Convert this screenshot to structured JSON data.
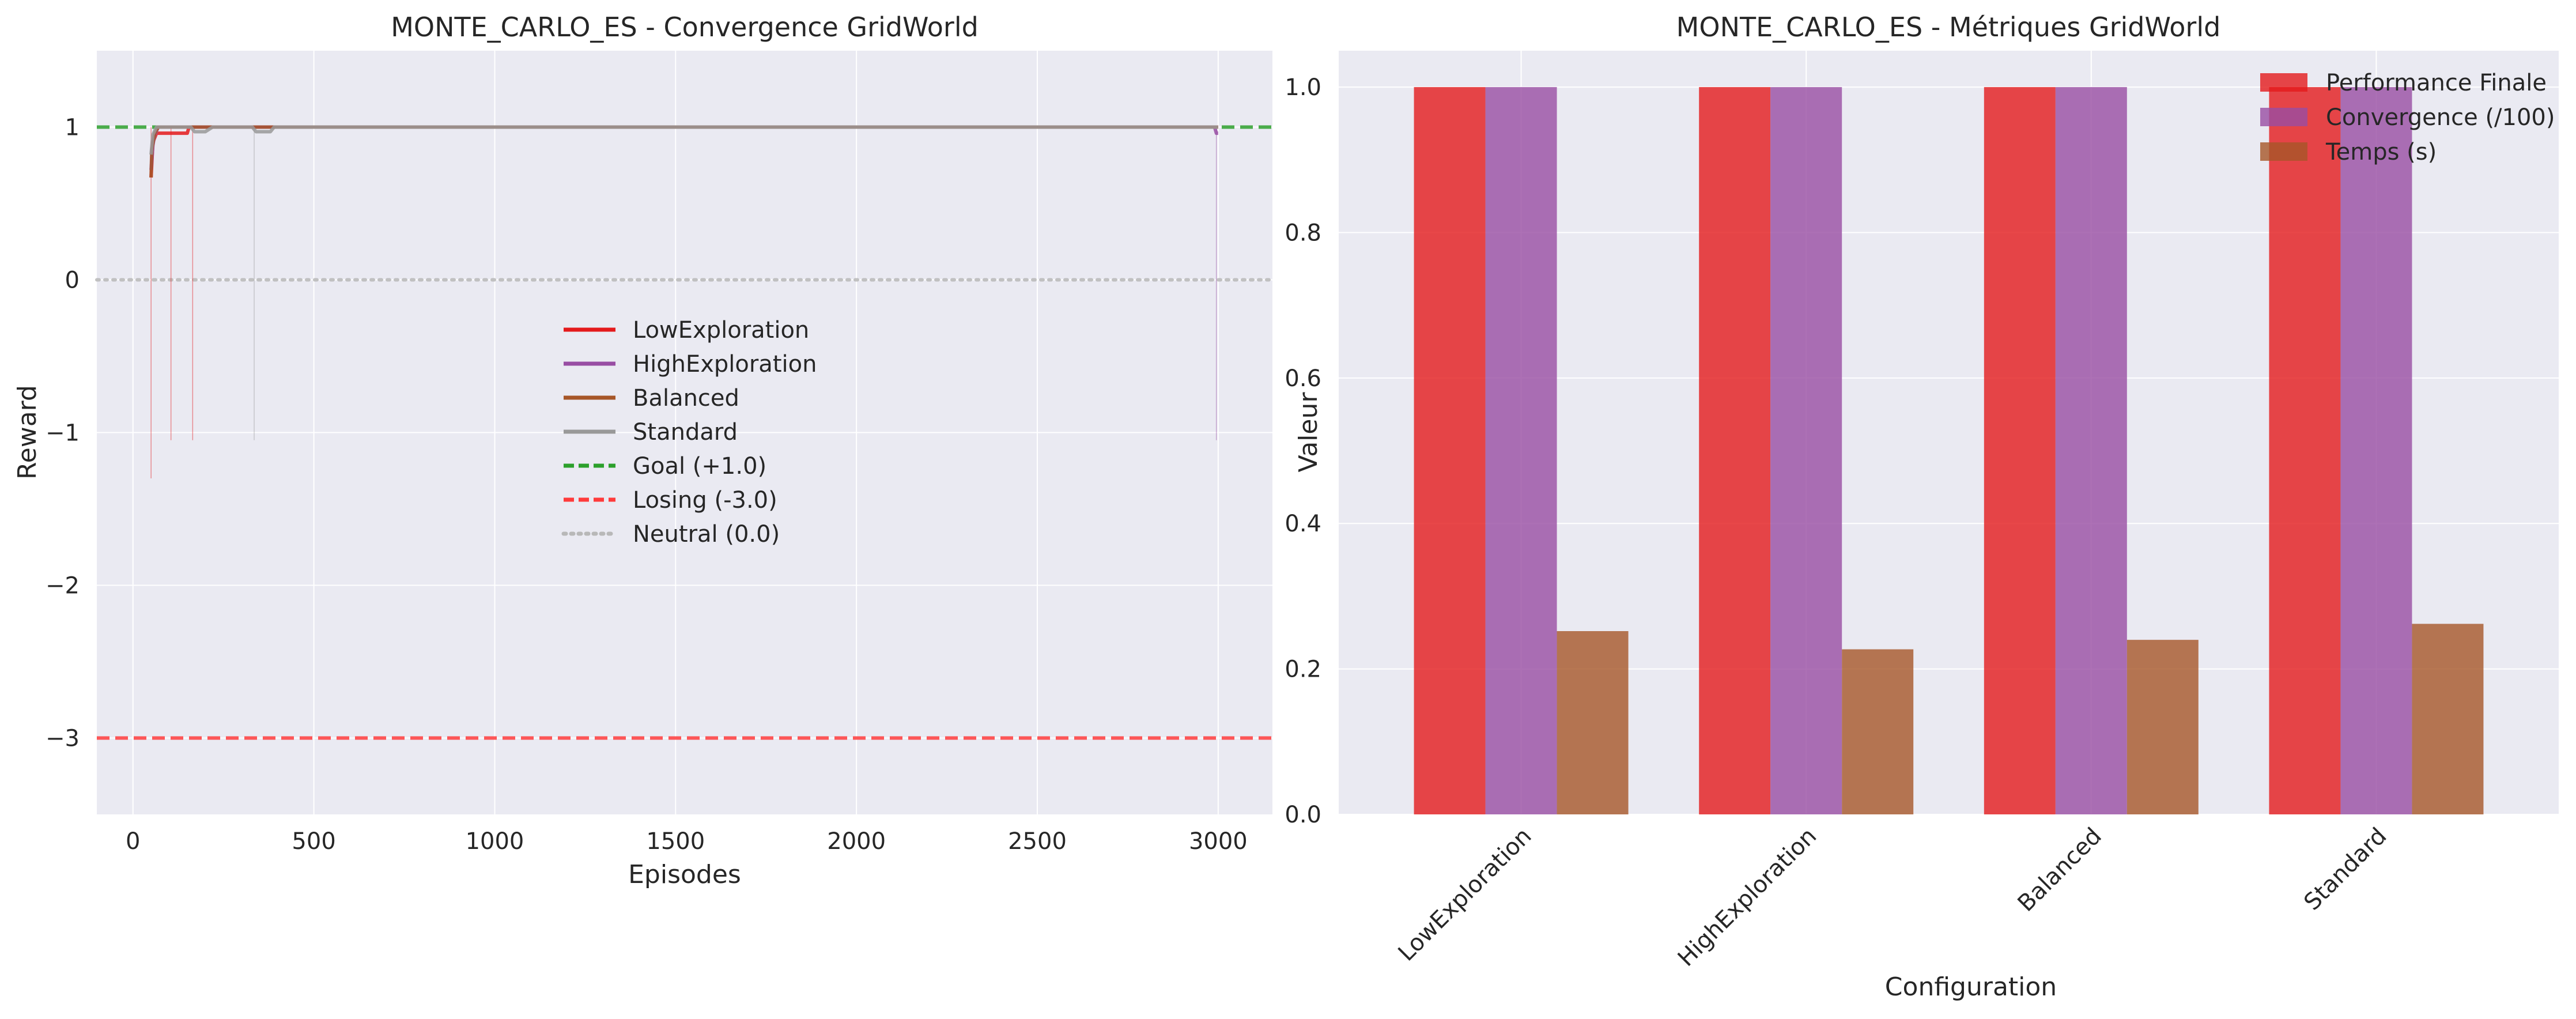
{
  "colors": {
    "panel_bg": "#eaeaf2",
    "grid": "#ffffff",
    "low_exploration": "#e41a1c",
    "high_exploration": "#984ea3",
    "balanced": "#a65628",
    "standard": "#999999",
    "goal": "#2ca02c",
    "losing": "#ff3b3b",
    "neutral": "#b8b8b8"
  },
  "chart_data": [
    {
      "type": "line",
      "title": "MONTE_CARLO_ES - Convergence GridWorld",
      "xlabel": "Episodes",
      "ylabel": "Reward",
      "xlim": [
        -100,
        3150
      ],
      "ylim": [
        -3.5,
        1.5
      ],
      "xticks": [
        0,
        500,
        1000,
        1500,
        2000,
        2500,
        3000
      ],
      "xtick_labels": [
        "0",
        "500",
        "1000",
        "1500",
        "2000",
        "2500",
        "3000"
      ],
      "yticks": [
        -3,
        -2,
        -1,
        0,
        1
      ],
      "ytick_labels": [
        "−3",
        "−2",
        "−1",
        "0",
        "1"
      ],
      "grid": true,
      "legend_position": "center",
      "series": [
        {
          "name": "LowExploration",
          "color_key": "low_exploration",
          "x": [
            50,
            55,
            65,
            75,
            100,
            130,
            150,
            155,
            3000
          ],
          "y": [
            0.67,
            0.9,
            0.96,
            0.96,
            0.96,
            0.96,
            0.96,
            1.0,
            1.0
          ]
        },
        {
          "name": "HighExploration",
          "color_key": "high_exploration",
          "x": [
            50,
            55,
            60,
            70,
            100,
            2990,
            2995,
            3000
          ],
          "y": [
            0.72,
            0.88,
            0.95,
            1.0,
            1.0,
            1.0,
            0.96,
            0.96
          ]
        },
        {
          "name": "Balanced",
          "color_key": "balanced",
          "x": [
            50,
            52,
            60,
            70,
            100,
            3000
          ],
          "y": [
            0.67,
            0.85,
            0.96,
            1.0,
            1.0,
            1.0
          ]
        },
        {
          "name": "Standard",
          "color_key": "standard",
          "x": [
            50,
            55,
            65,
            80,
            120,
            160,
            170,
            200,
            220,
            330,
            340,
            380,
            390,
            3000
          ],
          "y": [
            0.82,
            0.95,
            1.0,
            1.0,
            1.0,
            1.0,
            0.97,
            0.97,
            1.0,
            1.0,
            0.97,
            0.97,
            1.0,
            1.0
          ]
        }
      ],
      "spikes": [
        {
          "x": 50,
          "y": -1.3,
          "color_key": "low_exploration"
        },
        {
          "x": 105,
          "y": -1.05,
          "color_key": "low_exploration"
        },
        {
          "x": 165,
          "y": -1.05,
          "color_key": "low_exploration"
        },
        {
          "x": 335,
          "y": -1.05,
          "color_key": "standard"
        },
        {
          "x": 2995,
          "y": -1.05,
          "color_key": "high_exploration"
        }
      ],
      "reference_lines": [
        {
          "name": "Goal (+1.0)",
          "y": 1.0,
          "color_key": "goal",
          "style": "dashed"
        },
        {
          "name": "Losing (-3.0)",
          "y": -3.0,
          "color_key": "losing",
          "style": "dashed"
        },
        {
          "name": "Neutral (0.0)",
          "y": 0.0,
          "color_key": "neutral",
          "style": "dotted"
        }
      ],
      "legend": [
        "LowExploration",
        "HighExploration",
        "Balanced",
        "Standard",
        "Goal (+1.0)",
        "Losing (-3.0)",
        "Neutral (0.0)"
      ]
    },
    {
      "type": "bar",
      "title": "MONTE_CARLO_ES - Métriques GridWorld",
      "xlabel": "Configuration",
      "ylabel": "Valeur",
      "categories": [
        "LowExploration",
        "HighExploration",
        "Balanced",
        "Standard"
      ],
      "ylim": [
        0,
        1.05
      ],
      "yticks": [
        0.0,
        0.2,
        0.4,
        0.6,
        0.8,
        1.0
      ],
      "ytick_labels": [
        "0.0",
        "0.2",
        "0.4",
        "0.6",
        "0.8",
        "1.0"
      ],
      "grid": true,
      "legend_position": "top-right",
      "series": [
        {
          "name": "Performance Finale",
          "color": "#e41a1c",
          "values": [
            1.0,
            1.0,
            1.0,
            1.0
          ]
        },
        {
          "name": "Convergence (/100)",
          "color": "#984ea3",
          "values": [
            1.0,
            1.0,
            1.0,
            1.0
          ]
        },
        {
          "name": "Temps (s)",
          "color": "#a65628",
          "values": [
            0.252,
            0.227,
            0.24,
            0.262
          ]
        }
      ]
    }
  ]
}
